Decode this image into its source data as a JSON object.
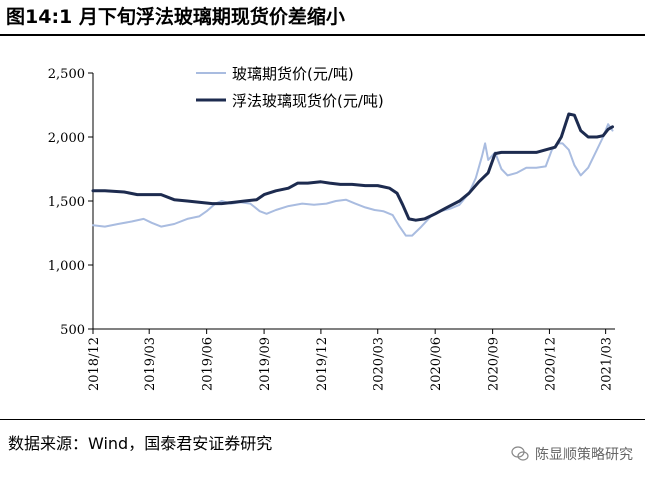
{
  "title": "图14:1 月下旬浮法玻璃期现货价差缩小",
  "source": "数据来源：Wind，国泰君安证券研究",
  "watermark": "陈显顺策略研究",
  "colors": {
    "glass_futures": "#a9bce0",
    "float_spot": "#1d2b4f"
  },
  "chart_data": {
    "type": "line",
    "ylim": [
      500,
      2500
    ],
    "yticks": [
      500,
      1000,
      1500,
      2000,
      2500
    ],
    "ytick_labels": [
      "500",
      "1,000",
      "1,500",
      "2,000",
      "2,500"
    ],
    "xlim": [
      "2018-12",
      "2021-03"
    ],
    "xtick_labels": [
      "2018/12",
      "2019/03",
      "2019/06",
      "2019/09",
      "2019/12",
      "2020/03",
      "2020/06",
      "2020/09",
      "2020/12",
      "2021/03"
    ],
    "legend": "top-center",
    "grid": false,
    "series": [
      {
        "name": "玻璃期货价(元/吨)",
        "points": [
          [
            "2018-12-01",
            1310
          ],
          [
            "2018-12-20",
            1300
          ],
          [
            "2019-01-10",
            1320
          ],
          [
            "2019-02-01",
            1340
          ],
          [
            "2019-02-20",
            1360
          ],
          [
            "2019-03-05",
            1330
          ],
          [
            "2019-03-20",
            1300
          ],
          [
            "2019-04-10",
            1320
          ],
          [
            "2019-05-01",
            1360
          ],
          [
            "2019-05-20",
            1380
          ],
          [
            "2019-06-01",
            1420
          ],
          [
            "2019-06-15",
            1480
          ],
          [
            "2019-06-25",
            1500
          ],
          [
            "2019-07-10",
            1480
          ],
          [
            "2019-07-25",
            1490
          ],
          [
            "2019-08-10",
            1480
          ],
          [
            "2019-08-25",
            1420
          ],
          [
            "2019-09-05",
            1400
          ],
          [
            "2019-09-20",
            1430
          ],
          [
            "2019-10-10",
            1460
          ],
          [
            "2019-11-01",
            1480
          ],
          [
            "2019-11-20",
            1470
          ],
          [
            "2019-12-10",
            1480
          ],
          [
            "2019-12-25",
            1500
          ],
          [
            "2020-01-10",
            1510
          ],
          [
            "2020-01-25",
            1480
          ],
          [
            "2020-02-10",
            1450
          ],
          [
            "2020-02-25",
            1430
          ],
          [
            "2020-03-10",
            1420
          ],
          [
            "2020-03-25",
            1390
          ],
          [
            "2020-04-05",
            1300
          ],
          [
            "2020-04-15",
            1230
          ],
          [
            "2020-04-25",
            1230
          ],
          [
            "2020-05-10",
            1300
          ],
          [
            "2020-05-25",
            1380
          ],
          [
            "2020-06-10",
            1420
          ],
          [
            "2020-06-25",
            1440
          ],
          [
            "2020-07-10",
            1470
          ],
          [
            "2020-07-25",
            1560
          ],
          [
            "2020-08-05",
            1680
          ],
          [
            "2020-08-15",
            1850
          ],
          [
            "2020-08-20",
            1950
          ],
          [
            "2020-08-25",
            1820
          ],
          [
            "2020-09-05",
            1880
          ],
          [
            "2020-09-15",
            1750
          ],
          [
            "2020-09-25",
            1700
          ],
          [
            "2020-10-10",
            1720
          ],
          [
            "2020-10-25",
            1760
          ],
          [
            "2020-11-10",
            1760
          ],
          [
            "2020-11-25",
            1770
          ],
          [
            "2020-12-05",
            1900
          ],
          [
            "2020-12-15",
            1950
          ],
          [
            "2020-12-22",
            1950
          ],
          [
            "2021-01-01",
            1900
          ],
          [
            "2021-01-10",
            1780
          ],
          [
            "2021-01-20",
            1700
          ],
          [
            "2021-02-01",
            1760
          ],
          [
            "2021-02-15",
            1900
          ],
          [
            "2021-02-25",
            2000
          ],
          [
            "2021-03-05",
            2100
          ],
          [
            "2021-03-12",
            2050
          ]
        ]
      },
      {
        "name": "浮法玻璃现货价(元/吨)",
        "points": [
          [
            "2018-12-01",
            1580
          ],
          [
            "2018-12-20",
            1580
          ],
          [
            "2019-01-20",
            1570
          ],
          [
            "2019-02-10",
            1550
          ],
          [
            "2019-03-01",
            1550
          ],
          [
            "2019-03-20",
            1550
          ],
          [
            "2019-04-10",
            1510
          ],
          [
            "2019-05-01",
            1500
          ],
          [
            "2019-05-20",
            1490
          ],
          [
            "2019-06-10",
            1480
          ],
          [
            "2019-06-25",
            1480
          ],
          [
            "2019-07-15",
            1490
          ],
          [
            "2019-08-01",
            1500
          ],
          [
            "2019-08-20",
            1510
          ],
          [
            "2019-09-01",
            1550
          ],
          [
            "2019-09-20",
            1580
          ],
          [
            "2019-10-10",
            1600
          ],
          [
            "2019-10-25",
            1640
          ],
          [
            "2019-11-10",
            1640
          ],
          [
            "2019-12-01",
            1650
          ],
          [
            "2019-12-15",
            1640
          ],
          [
            "2020-01-01",
            1630
          ],
          [
            "2020-01-20",
            1630
          ],
          [
            "2020-02-10",
            1620
          ],
          [
            "2020-03-01",
            1620
          ],
          [
            "2020-03-20",
            1600
          ],
          [
            "2020-04-01",
            1560
          ],
          [
            "2020-04-10",
            1470
          ],
          [
            "2020-04-20",
            1360
          ],
          [
            "2020-05-01",
            1350
          ],
          [
            "2020-05-15",
            1360
          ],
          [
            "2020-06-01",
            1400
          ],
          [
            "2020-06-20",
            1450
          ],
          [
            "2020-07-10",
            1500
          ],
          [
            "2020-07-25",
            1560
          ],
          [
            "2020-08-10",
            1650
          ],
          [
            "2020-08-25",
            1720
          ],
          [
            "2020-09-05",
            1870
          ],
          [
            "2020-09-15",
            1880
          ],
          [
            "2020-10-01",
            1880
          ],
          [
            "2020-10-20",
            1880
          ],
          [
            "2020-11-10",
            1880
          ],
          [
            "2020-11-25",
            1900
          ],
          [
            "2020-12-10",
            1920
          ],
          [
            "2020-12-20",
            2000
          ],
          [
            "2021-01-01",
            2180
          ],
          [
            "2021-01-10",
            2170
          ],
          [
            "2021-01-20",
            2050
          ],
          [
            "2021-02-01",
            2000
          ],
          [
            "2021-02-15",
            2000
          ],
          [
            "2021-02-25",
            2010
          ],
          [
            "2021-03-05",
            2060
          ],
          [
            "2021-03-12",
            2080
          ]
        ]
      }
    ]
  }
}
